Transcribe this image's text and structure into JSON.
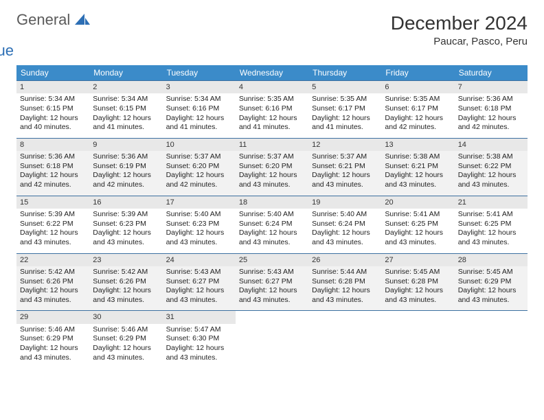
{
  "brand": {
    "word1": "General",
    "word2": "Blue"
  },
  "colors": {
    "header_bg": "#3b8bc9",
    "header_text": "#ffffff",
    "row_divider": "#3b6fa0",
    "daynum_bg": "#e8e8e8",
    "text": "#222222",
    "logo_gray": "#5a5a5a",
    "logo_blue": "#2d6fb5",
    "background": "#ffffff"
  },
  "title": "December 2024",
  "location": "Paucar, Pasco, Peru",
  "weekdays": [
    "Sunday",
    "Monday",
    "Tuesday",
    "Wednesday",
    "Thursday",
    "Friday",
    "Saturday"
  ],
  "weeks": [
    [
      {
        "day": "1",
        "sunrise": "Sunrise: 5:34 AM",
        "sunset": "Sunset: 6:15 PM",
        "daylight": "Daylight: 12 hours and 40 minutes."
      },
      {
        "day": "2",
        "sunrise": "Sunrise: 5:34 AM",
        "sunset": "Sunset: 6:15 PM",
        "daylight": "Daylight: 12 hours and 41 minutes."
      },
      {
        "day": "3",
        "sunrise": "Sunrise: 5:34 AM",
        "sunset": "Sunset: 6:16 PM",
        "daylight": "Daylight: 12 hours and 41 minutes."
      },
      {
        "day": "4",
        "sunrise": "Sunrise: 5:35 AM",
        "sunset": "Sunset: 6:16 PM",
        "daylight": "Daylight: 12 hours and 41 minutes."
      },
      {
        "day": "5",
        "sunrise": "Sunrise: 5:35 AM",
        "sunset": "Sunset: 6:17 PM",
        "daylight": "Daylight: 12 hours and 41 minutes."
      },
      {
        "day": "6",
        "sunrise": "Sunrise: 5:35 AM",
        "sunset": "Sunset: 6:17 PM",
        "daylight": "Daylight: 12 hours and 42 minutes."
      },
      {
        "day": "7",
        "sunrise": "Sunrise: 5:36 AM",
        "sunset": "Sunset: 6:18 PM",
        "daylight": "Daylight: 12 hours and 42 minutes."
      }
    ],
    [
      {
        "day": "8",
        "sunrise": "Sunrise: 5:36 AM",
        "sunset": "Sunset: 6:18 PM",
        "daylight": "Daylight: 12 hours and 42 minutes."
      },
      {
        "day": "9",
        "sunrise": "Sunrise: 5:36 AM",
        "sunset": "Sunset: 6:19 PM",
        "daylight": "Daylight: 12 hours and 42 minutes."
      },
      {
        "day": "10",
        "sunrise": "Sunrise: 5:37 AM",
        "sunset": "Sunset: 6:20 PM",
        "daylight": "Daylight: 12 hours and 42 minutes."
      },
      {
        "day": "11",
        "sunrise": "Sunrise: 5:37 AM",
        "sunset": "Sunset: 6:20 PM",
        "daylight": "Daylight: 12 hours and 43 minutes."
      },
      {
        "day": "12",
        "sunrise": "Sunrise: 5:37 AM",
        "sunset": "Sunset: 6:21 PM",
        "daylight": "Daylight: 12 hours and 43 minutes."
      },
      {
        "day": "13",
        "sunrise": "Sunrise: 5:38 AM",
        "sunset": "Sunset: 6:21 PM",
        "daylight": "Daylight: 12 hours and 43 minutes."
      },
      {
        "day": "14",
        "sunrise": "Sunrise: 5:38 AM",
        "sunset": "Sunset: 6:22 PM",
        "daylight": "Daylight: 12 hours and 43 minutes."
      }
    ],
    [
      {
        "day": "15",
        "sunrise": "Sunrise: 5:39 AM",
        "sunset": "Sunset: 6:22 PM",
        "daylight": "Daylight: 12 hours and 43 minutes."
      },
      {
        "day": "16",
        "sunrise": "Sunrise: 5:39 AM",
        "sunset": "Sunset: 6:23 PM",
        "daylight": "Daylight: 12 hours and 43 minutes."
      },
      {
        "day": "17",
        "sunrise": "Sunrise: 5:40 AM",
        "sunset": "Sunset: 6:23 PM",
        "daylight": "Daylight: 12 hours and 43 minutes."
      },
      {
        "day": "18",
        "sunrise": "Sunrise: 5:40 AM",
        "sunset": "Sunset: 6:24 PM",
        "daylight": "Daylight: 12 hours and 43 minutes."
      },
      {
        "day": "19",
        "sunrise": "Sunrise: 5:40 AM",
        "sunset": "Sunset: 6:24 PM",
        "daylight": "Daylight: 12 hours and 43 minutes."
      },
      {
        "day": "20",
        "sunrise": "Sunrise: 5:41 AM",
        "sunset": "Sunset: 6:25 PM",
        "daylight": "Daylight: 12 hours and 43 minutes."
      },
      {
        "day": "21",
        "sunrise": "Sunrise: 5:41 AM",
        "sunset": "Sunset: 6:25 PM",
        "daylight": "Daylight: 12 hours and 43 minutes."
      }
    ],
    [
      {
        "day": "22",
        "sunrise": "Sunrise: 5:42 AM",
        "sunset": "Sunset: 6:26 PM",
        "daylight": "Daylight: 12 hours and 43 minutes."
      },
      {
        "day": "23",
        "sunrise": "Sunrise: 5:42 AM",
        "sunset": "Sunset: 6:26 PM",
        "daylight": "Daylight: 12 hours and 43 minutes."
      },
      {
        "day": "24",
        "sunrise": "Sunrise: 5:43 AM",
        "sunset": "Sunset: 6:27 PM",
        "daylight": "Daylight: 12 hours and 43 minutes."
      },
      {
        "day": "25",
        "sunrise": "Sunrise: 5:43 AM",
        "sunset": "Sunset: 6:27 PM",
        "daylight": "Daylight: 12 hours and 43 minutes."
      },
      {
        "day": "26",
        "sunrise": "Sunrise: 5:44 AM",
        "sunset": "Sunset: 6:28 PM",
        "daylight": "Daylight: 12 hours and 43 minutes."
      },
      {
        "day": "27",
        "sunrise": "Sunrise: 5:45 AM",
        "sunset": "Sunset: 6:28 PM",
        "daylight": "Daylight: 12 hours and 43 minutes."
      },
      {
        "day": "28",
        "sunrise": "Sunrise: 5:45 AM",
        "sunset": "Sunset: 6:29 PM",
        "daylight": "Daylight: 12 hours and 43 minutes."
      }
    ],
    [
      {
        "day": "29",
        "sunrise": "Sunrise: 5:46 AM",
        "sunset": "Sunset: 6:29 PM",
        "daylight": "Daylight: 12 hours and 43 minutes."
      },
      {
        "day": "30",
        "sunrise": "Sunrise: 5:46 AM",
        "sunset": "Sunset: 6:29 PM",
        "daylight": "Daylight: 12 hours and 43 minutes."
      },
      {
        "day": "31",
        "sunrise": "Sunrise: 5:47 AM",
        "sunset": "Sunset: 6:30 PM",
        "daylight": "Daylight: 12 hours and 43 minutes."
      },
      null,
      null,
      null,
      null
    ]
  ]
}
